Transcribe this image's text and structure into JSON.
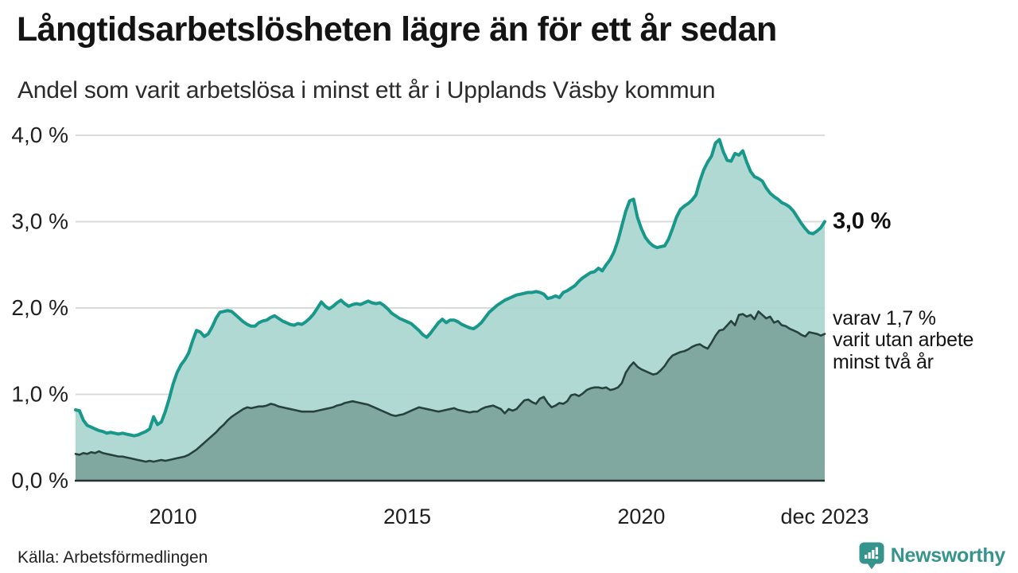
{
  "header": {
    "title": "Långtidsarbetslösheten lägre än för ett år sedan",
    "subtitle": "Andel som varit arbetslösa i minst ett år i Upplands Väsby kommun"
  },
  "chart_data": {
    "type": "area",
    "unit": "%",
    "frequency": "monthly",
    "x_start": "2007-12",
    "x_end": "2023-12",
    "ylim": [
      0,
      4.0
    ],
    "grid": "horizontal",
    "y_ticks": [
      {
        "label": "4,0 %",
        "value": 4
      },
      {
        "label": "3,0 %",
        "value": 3
      },
      {
        "label": "2,0 %",
        "value": 2
      },
      {
        "label": "1,0 %",
        "value": 1
      },
      {
        "label": "0,0 %",
        "value": 0
      }
    ],
    "x_ticks": [
      {
        "label": "2010",
        "index": 25
      },
      {
        "label": "2015",
        "index": 85
      },
      {
        "label": "2020",
        "index": 145
      },
      {
        "label": "dec 2023",
        "index": 192
      }
    ],
    "series": [
      {
        "name": "arbetslösa minst ett år",
        "line_color": "#17988a",
        "fill_color": "#a8d5cf",
        "end_value": "3,0 %",
        "values": [
          0.82,
          0.81,
          0.7,
          0.64,
          0.62,
          0.6,
          0.58,
          0.57,
          0.55,
          0.56,
          0.55,
          0.54,
          0.55,
          0.54,
          0.53,
          0.52,
          0.53,
          0.55,
          0.57,
          0.6,
          0.74,
          0.65,
          0.68,
          0.8,
          0.95,
          1.12,
          1.25,
          1.34,
          1.4,
          1.48,
          1.62,
          1.74,
          1.72,
          1.67,
          1.7,
          1.78,
          1.88,
          1.95,
          1.96,
          1.97,
          1.96,
          1.92,
          1.88,
          1.84,
          1.81,
          1.79,
          1.79,
          1.83,
          1.85,
          1.86,
          1.89,
          1.91,
          1.88,
          1.85,
          1.83,
          1.81,
          1.8,
          1.82,
          1.81,
          1.84,
          1.88,
          1.93,
          2.0,
          2.07,
          2.02,
          1.99,
          2.02,
          2.06,
          2.09,
          2.05,
          2.02,
          2.04,
          2.05,
          2.04,
          2.06,
          2.08,
          2.06,
          2.05,
          2.06,
          2.03,
          1.99,
          1.94,
          1.91,
          1.88,
          1.86,
          1.84,
          1.82,
          1.78,
          1.74,
          1.69,
          1.66,
          1.71,
          1.77,
          1.83,
          1.87,
          1.83,
          1.86,
          1.86,
          1.84,
          1.81,
          1.79,
          1.77,
          1.76,
          1.79,
          1.83,
          1.89,
          1.95,
          1.99,
          2.03,
          2.06,
          2.09,
          2.11,
          2.13,
          2.15,
          2.16,
          2.17,
          2.18,
          2.18,
          2.19,
          2.18,
          2.16,
          2.11,
          2.12,
          2.14,
          2.12,
          2.18,
          2.2,
          2.23,
          2.26,
          2.31,
          2.35,
          2.38,
          2.41,
          2.42,
          2.46,
          2.43,
          2.5,
          2.56,
          2.65,
          2.78,
          2.95,
          3.12,
          3.24,
          3.26,
          3.05,
          2.92,
          2.82,
          2.76,
          2.72,
          2.7,
          2.71,
          2.72,
          2.8,
          2.92,
          3.05,
          3.14,
          3.18,
          3.21,
          3.25,
          3.31,
          3.47,
          3.6,
          3.69,
          3.76,
          3.91,
          3.95,
          3.81,
          3.71,
          3.7,
          3.79,
          3.77,
          3.82,
          3.69,
          3.58,
          3.52,
          3.5,
          3.47,
          3.39,
          3.33,
          3.29,
          3.26,
          3.22,
          3.2,
          3.17,
          3.12,
          3.05,
          2.98,
          2.92,
          2.87,
          2.86,
          2.89,
          2.93,
          3.0
        ]
      },
      {
        "name": "varav arbetslösa minst två år",
        "line_color": "#27423e",
        "fill_color": "#7da59e",
        "end_value": "1,7 %",
        "values": [
          0.31,
          0.3,
          0.32,
          0.31,
          0.33,
          0.32,
          0.34,
          0.32,
          0.31,
          0.3,
          0.29,
          0.28,
          0.28,
          0.27,
          0.26,
          0.25,
          0.24,
          0.23,
          0.22,
          0.23,
          0.22,
          0.23,
          0.24,
          0.23,
          0.24,
          0.25,
          0.26,
          0.27,
          0.28,
          0.3,
          0.33,
          0.36,
          0.4,
          0.44,
          0.48,
          0.52,
          0.56,
          0.61,
          0.65,
          0.7,
          0.74,
          0.77,
          0.8,
          0.83,
          0.85,
          0.84,
          0.85,
          0.86,
          0.86,
          0.87,
          0.89,
          0.88,
          0.86,
          0.85,
          0.84,
          0.83,
          0.82,
          0.81,
          0.8,
          0.8,
          0.8,
          0.8,
          0.81,
          0.82,
          0.83,
          0.84,
          0.85,
          0.87,
          0.88,
          0.9,
          0.91,
          0.92,
          0.91,
          0.9,
          0.89,
          0.88,
          0.86,
          0.84,
          0.82,
          0.8,
          0.78,
          0.76,
          0.75,
          0.76,
          0.77,
          0.79,
          0.81,
          0.83,
          0.85,
          0.84,
          0.83,
          0.82,
          0.81,
          0.8,
          0.81,
          0.82,
          0.83,
          0.84,
          0.82,
          0.81,
          0.8,
          0.79,
          0.8,
          0.8,
          0.83,
          0.85,
          0.86,
          0.87,
          0.85,
          0.83,
          0.78,
          0.83,
          0.81,
          0.83,
          0.88,
          0.93,
          0.94,
          0.91,
          0.89,
          0.95,
          0.97,
          0.9,
          0.85,
          0.87,
          0.9,
          0.89,
          0.92,
          0.99,
          1.0,
          0.98,
          1.01,
          1.05,
          1.07,
          1.08,
          1.08,
          1.07,
          1.08,
          1.05,
          1.06,
          1.08,
          1.13,
          1.25,
          1.32,
          1.37,
          1.32,
          1.29,
          1.27,
          1.25,
          1.23,
          1.24,
          1.28,
          1.33,
          1.4,
          1.45,
          1.47,
          1.49,
          1.5,
          1.52,
          1.55,
          1.57,
          1.58,
          1.55,
          1.53,
          1.6,
          1.68,
          1.74,
          1.75,
          1.8,
          1.85,
          1.8,
          1.92,
          1.93,
          1.9,
          1.92,
          1.87,
          1.96,
          1.92,
          1.88,
          1.9,
          1.83,
          1.85,
          1.8,
          1.79,
          1.76,
          1.74,
          1.72,
          1.69,
          1.67,
          1.72,
          1.71,
          1.7,
          1.68,
          1.7
        ]
      }
    ]
  },
  "annotations": {
    "end_label_primary": "3,0 %",
    "end_label_secondary": "varav 1,7 %\nvarit utan arbete\nminst två år"
  },
  "footer": {
    "source": "Källa: Arbetsförmedlingen",
    "brand": "Newsworthy"
  },
  "colors": {
    "accent_teal": "#17988a",
    "light_fill": "#a8d5cf",
    "dark_line": "#27423e",
    "dark_fill": "#7da59e",
    "gridline": "#d7dcda",
    "axis_line": "#24312e",
    "brand_teal": "#37948c",
    "text": "#141414"
  }
}
